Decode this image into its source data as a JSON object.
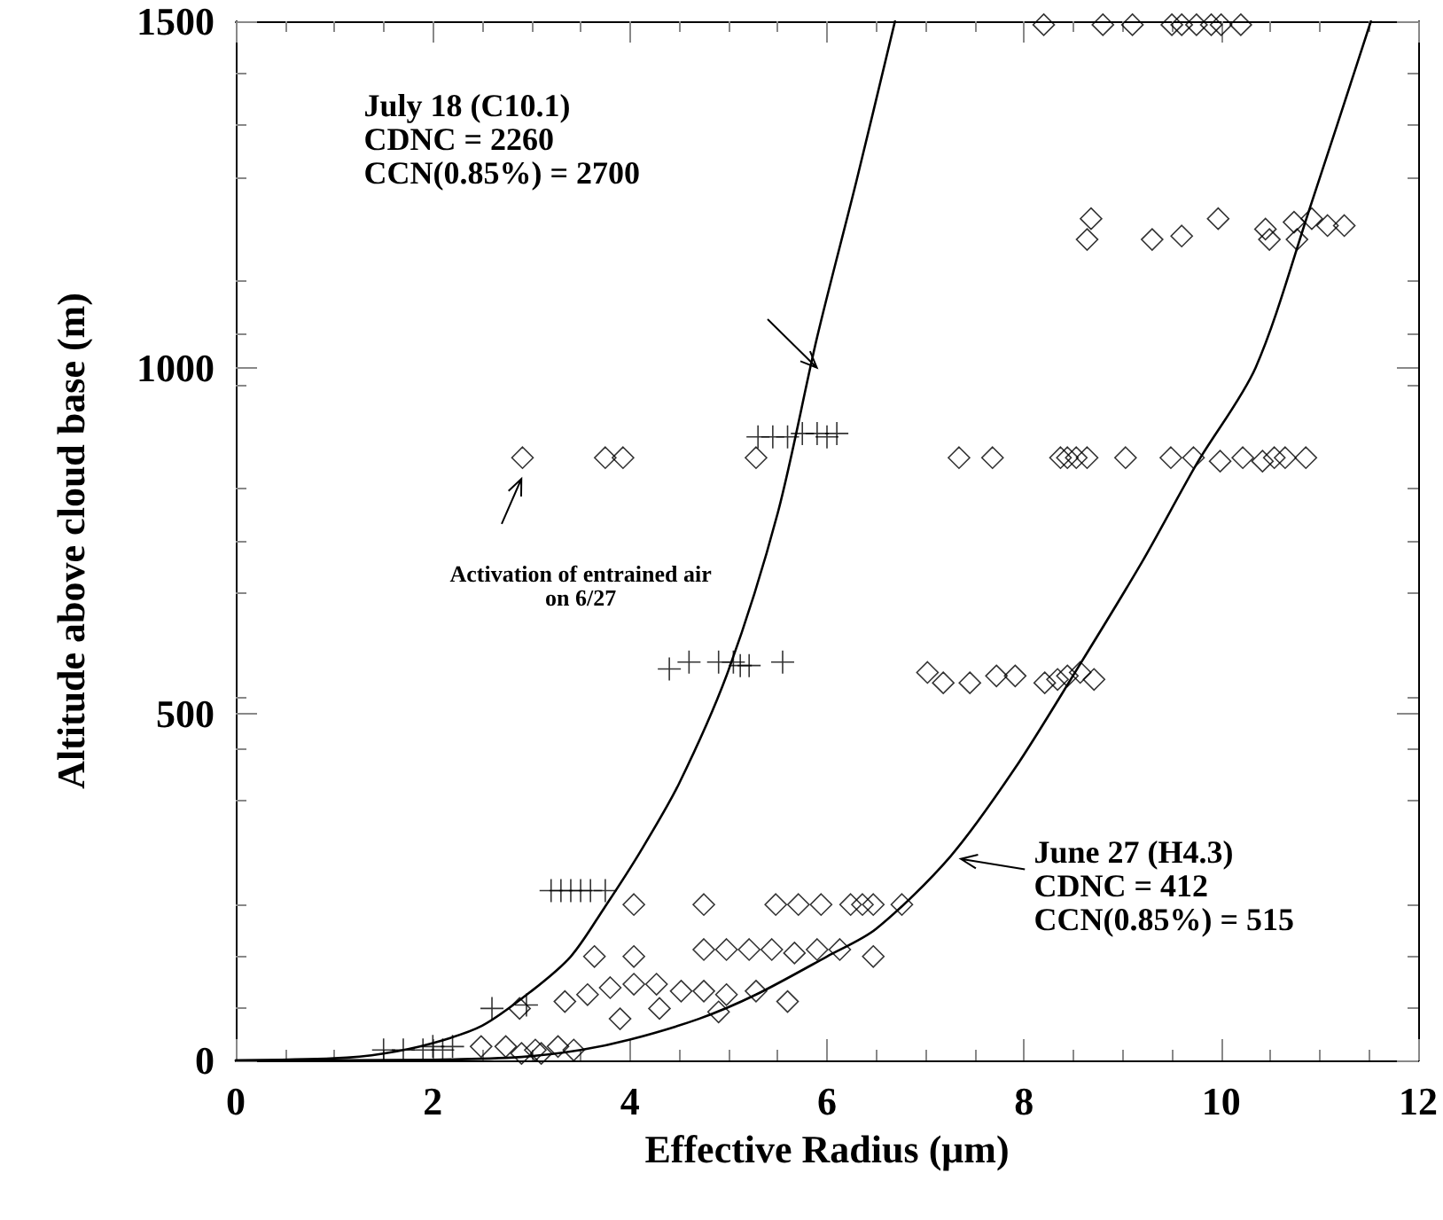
{
  "chart_data": {
    "type": "scatter",
    "xlabel": "Effective Radius (μm)",
    "ylabel": "Altitude above cloud base (m)",
    "xlim": [
      0,
      12
    ],
    "xticks": [
      0,
      2,
      4,
      6,
      8,
      10,
      12
    ],
    "ylim": [
      0,
      1500
    ],
    "yticks": [
      0,
      500,
      1000,
      1500
    ],
    "grid": false,
    "annotations": [
      "July 18 (C10.1)\nCDNC = 2260\nCCN(0.85%) = 2700",
      "June 27 (H4.3)\nCDNC = 412\nCCN(0.85%) = 515",
      "Activation of entrained air\non 6/27"
    ],
    "series": [
      {
        "type": "line",
        "color": "#000000",
        "marker": "none",
        "line_style": "solid",
        "x": [
          0,
          1,
          1.5,
          2,
          2.5,
          3,
          3.4,
          3.73,
          4.1,
          4.5,
          5.0,
          5.5,
          5.9,
          6.3,
          6.69
        ],
        "values": [
          0,
          3,
          10,
          25,
          50,
          100,
          150,
          218,
          300,
          400,
          563,
          790,
          1044,
          1270,
          1500
        ]
      },
      {
        "type": "line",
        "color": "#000000",
        "marker": "none",
        "line_style": "solid",
        "x": [
          0,
          2,
          2.9,
          3.5,
          4,
          4.7,
          5.28,
          6,
          6.5,
          7.25,
          7.9,
          8.53,
          9.2,
          9.76,
          10.35,
          10.9,
          11.52
        ],
        "values": [
          0,
          1,
          5,
          15,
          30,
          60,
          95,
          150,
          190,
          294,
          420,
          563,
          720,
          863,
          1000,
          1230,
          1500
        ]
      },
      {
        "color": "#000000",
        "marker": "cross",
        "x": [
          5.3,
          5.45,
          5.6,
          5.75,
          5.9,
          6.0,
          6.1,
          4.4,
          4.6,
          4.9,
          5.05,
          5.12,
          5.21,
          5.55,
          3.2,
          3.3,
          3.4,
          3.5,
          3.6,
          3.75,
          2.6,
          2.95,
          1.5,
          1.7,
          1.9,
          2.0,
          2.1,
          2.2
        ],
        "values": [
          900,
          900,
          900,
          905,
          905,
          900,
          905,
          565,
          575,
          575,
          575,
          570,
          570,
          575,
          245,
          245,
          245,
          245,
          245,
          245,
          75,
          80,
          15,
          15,
          15,
          20,
          15,
          20
        ]
      },
      {
        "color": "#000000",
        "marker": "diamond",
        "x": [
          8.2,
          8.8,
          9.1,
          9.5,
          9.6,
          9.75,
          9.9,
          10.0,
          10.2,
          8.68,
          8.64,
          9.3,
          9.6,
          9.97,
          10.45,
          10.49,
          10.74,
          10.77,
          10.92,
          11.08,
          11.25,
          2.91,
          3.75,
          3.93,
          5.28,
          7.34,
          7.68,
          8.37,
          8.44,
          8.53,
          8.64,
          9.03,
          9.49,
          9.72,
          9.99,
          10.22,
          10.42,
          10.54,
          10.65,
          10.86,
          7.02,
          7.18,
          7.45,
          7.72,
          7.91,
          8.21,
          8.34,
          8.44,
          8.57,
          8.71,
          4.04,
          4.75,
          5.48,
          5.71,
          5.94,
          6.24,
          6.36,
          6.47,
          6.76,
          3.64,
          4.04,
          4.75,
          4.98,
          5.21,
          5.44,
          5.67,
          5.9,
          6.13,
          6.47,
          2.88,
          3.34,
          3.57,
          3.8,
          4.04,
          4.27,
          4.52,
          4.75,
          4.98,
          5.28,
          3.9,
          4.3,
          4.9,
          5.6,
          2.49,
          2.74,
          3.04,
          3.27,
          3.43,
          2.9,
          3.1
        ],
        "values": [
          1495,
          1495,
          1495,
          1495,
          1495,
          1495,
          1495,
          1495,
          1495,
          1215,
          1185,
          1185,
          1190,
          1215,
          1200,
          1185,
          1210,
          1185,
          1215,
          1205,
          1205,
          870,
          870,
          870,
          870,
          870,
          870,
          870,
          870,
          870,
          870,
          870,
          870,
          870,
          865,
          870,
          865,
          870,
          870,
          870,
          560,
          545,
          545,
          555,
          555,
          545,
          550,
          555,
          560,
          550,
          225,
          225,
          225,
          225,
          225,
          225,
          225,
          225,
          225,
          150,
          150,
          160,
          160,
          160,
          160,
          155,
          160,
          160,
          150,
          75,
          85,
          95,
          105,
          110,
          110,
          100,
          100,
          95,
          100,
          60,
          75,
          70,
          85,
          20,
          20,
          15,
          20,
          15,
          10,
          10
        ]
      }
    ]
  }
}
